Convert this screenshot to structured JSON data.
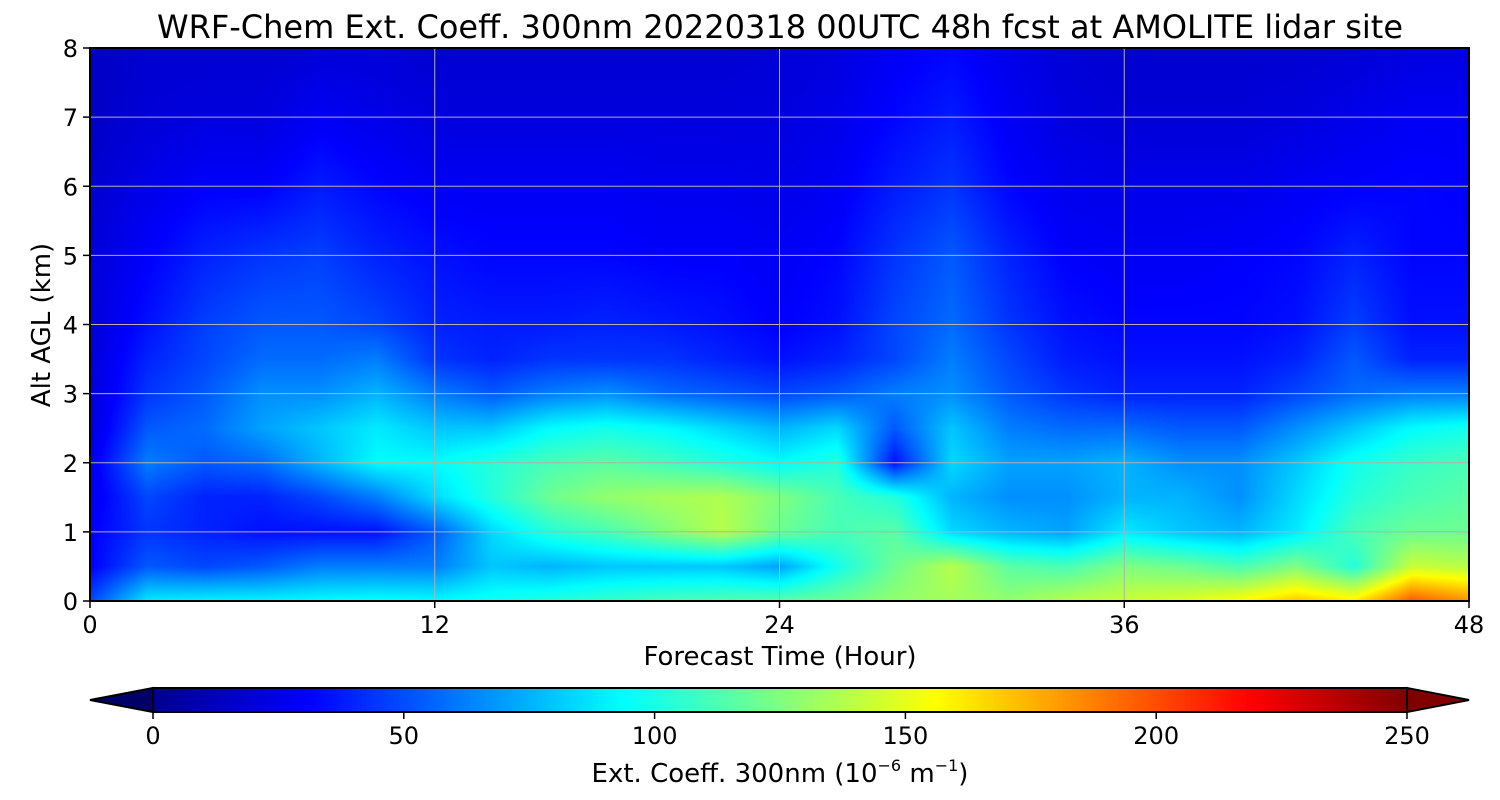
{
  "chart_data": {
    "type": "heatmap",
    "title": "WRF-Chem Ext. Coeff. 300nm  20220318 00UTC 48h fcst at AMOLITE lidar site",
    "xlabel": "Forecast Time (Hour)",
    "ylabel": "Alt AGL (km)",
    "xlim": [
      0,
      48
    ],
    "ylim": [
      0,
      8
    ],
    "x_ticks": [
      0,
      12,
      24,
      36,
      48
    ],
    "y_ticks": [
      0,
      1,
      2,
      3,
      4,
      5,
      6,
      7,
      8
    ],
    "grid": true,
    "colormap": "jet",
    "colorbar": {
      "label_main": "Ext. Coeff. 300nm  (10",
      "label_exp1": "−6",
      "label_mid": " m",
      "label_exp2": "−1",
      "label_end": ")",
      "range": [
        0,
        250
      ],
      "ticks": [
        0,
        50,
        100,
        150,
        200,
        250
      ],
      "extend": "both",
      "orientation": "horizontal",
      "under_color": "#000066",
      "over_color": "#800000"
    },
    "x_hours": [
      0,
      2,
      4,
      6,
      8,
      10,
      12,
      14,
      16,
      18,
      20,
      22,
      24,
      26,
      28,
      30,
      32,
      34,
      36,
      38,
      40,
      42,
      44,
      46,
      48
    ],
    "z_km": [
      0,
      0.5,
      1,
      1.5,
      2,
      2.5,
      3,
      3.5,
      4,
      5,
      6,
      7,
      8
    ],
    "values": [
      [
        40,
        85,
        88,
        88,
        90,
        92,
        90,
        95,
        100,
        105,
        110,
        112,
        115,
        120,
        130,
        135,
        130,
        140,
        145,
        150,
        160,
        175,
        165,
        205,
        190
      ],
      [
        20,
        45,
        40,
        45,
        55,
        55,
        55,
        75,
        70,
        75,
        75,
        75,
        65,
        95,
        120,
        140,
        115,
        110,
        125,
        120,
        110,
        125,
        100,
        145,
        140
      ],
      [
        20,
        35,
        30,
        25,
        25,
        25,
        45,
        80,
        100,
        110,
        125,
        140,
        120,
        110,
        115,
        80,
        70,
        65,
        85,
        75,
        70,
        85,
        110,
        120,
        120
      ],
      [
        15,
        40,
        30,
        30,
        40,
        55,
        80,
        100,
        120,
        130,
        135,
        138,
        125,
        110,
        100,
        70,
        60,
        60,
        70,
        70,
        60,
        80,
        100,
        110,
        115
      ],
      [
        15,
        55,
        45,
        50,
        70,
        90,
        90,
        100,
        110,
        115,
        108,
        100,
        90,
        100,
        25,
        80,
        65,
        65,
        70,
        60,
        60,
        75,
        95,
        105,
        110
      ],
      [
        10,
        45,
        50,
        65,
        75,
        85,
        75,
        75,
        90,
        95,
        90,
        80,
        70,
        80,
        45,
        75,
        55,
        50,
        50,
        45,
        45,
        60,
        75,
        90,
        95
      ],
      [
        10,
        35,
        45,
        60,
        60,
        70,
        55,
        45,
        55,
        60,
        50,
        45,
        40,
        45,
        55,
        60,
        45,
        35,
        30,
        30,
        30,
        40,
        50,
        55,
        55
      ],
      [
        10,
        30,
        40,
        50,
        50,
        55,
        35,
        30,
        35,
        35,
        35,
        30,
        25,
        30,
        40,
        55,
        40,
        28,
        25,
        25,
        25,
        30,
        45,
        30,
        30
      ],
      [
        10,
        25,
        38,
        45,
        45,
        40,
        30,
        28,
        28,
        30,
        28,
        25,
        20,
        25,
        40,
        50,
        35,
        25,
        22,
        22,
        22,
        25,
        38,
        25,
        25
      ],
      [
        10,
        20,
        30,
        35,
        38,
        30,
        25,
        22,
        22,
        22,
        20,
        20,
        18,
        22,
        35,
        45,
        30,
        20,
        18,
        18,
        20,
        22,
        30,
        22,
        22
      ],
      [
        8,
        15,
        20,
        20,
        28,
        22,
        18,
        18,
        18,
        18,
        16,
        16,
        15,
        18,
        28,
        35,
        22,
        16,
        15,
        15,
        15,
        18,
        20,
        22,
        20
      ],
      [
        5,
        10,
        12,
        12,
        18,
        15,
        12,
        12,
        12,
        12,
        12,
        12,
        12,
        15,
        22,
        28,
        18,
        12,
        10,
        10,
        10,
        12,
        15,
        18,
        18
      ],
      [
        5,
        8,
        8,
        8,
        10,
        10,
        8,
        8,
        8,
        8,
        8,
        8,
        10,
        12,
        18,
        22,
        15,
        10,
        8,
        8,
        8,
        8,
        10,
        12,
        12
      ]
    ]
  }
}
